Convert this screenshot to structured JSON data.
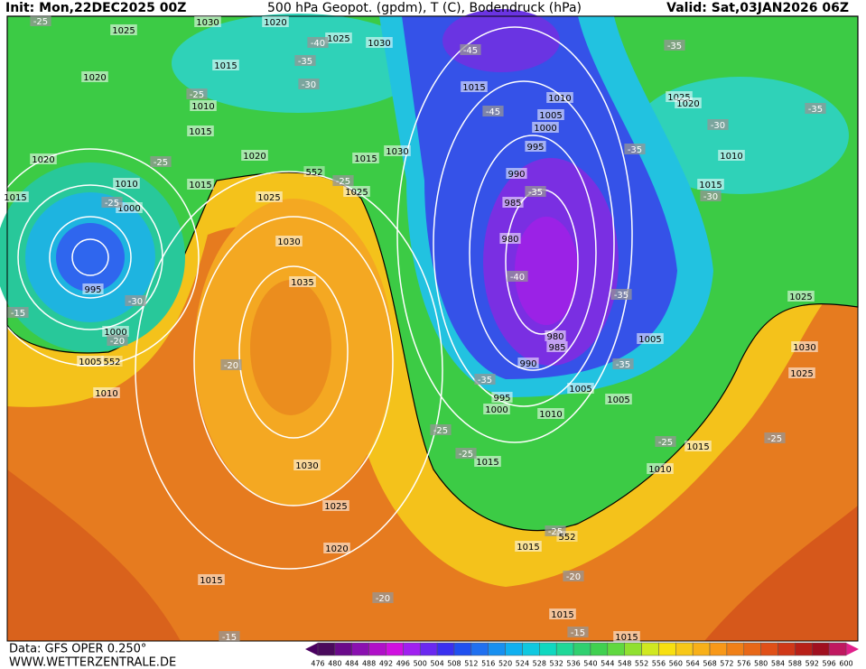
{
  "header": {
    "init": "Init: Mon,22DEC2025 00Z",
    "title": "500 hPa Geopot. (gpdm), T (C), Bodendruck (hPa)",
    "valid": "Valid: Sat,03JAN2026 06Z"
  },
  "footer": {
    "source": "Data: GFS OPER 0.250°",
    "site": "WWW.WETTERZENTRALE.DE"
  },
  "colorbar": {
    "ticks": [
      476,
      480,
      484,
      488,
      492,
      496,
      500,
      504,
      508,
      512,
      516,
      520,
      524,
      528,
      532,
      536,
      540,
      544,
      548,
      552,
      556,
      560,
      564,
      568,
      572,
      576,
      580,
      584,
      588,
      592,
      596,
      600
    ]
  },
  "map_labels": {
    "isobars": [
      1030,
      1020,
      1025,
      1025,
      1030,
      1015,
      1020,
      1010,
      1015,
      1020,
      1020,
      1015,
      1030,
      1010,
      1015,
      1025,
      1025,
      1000,
      1015,
      1030,
      1035,
      995,
      1000,
      1005,
      1010,
      1030,
      1025,
      1020,
      1015,
      1015,
      1010,
      1005,
      1000,
      995,
      990,
      985,
      980,
      980,
      985,
      990,
      995,
      1000,
      1010,
      1005,
      1005,
      1005,
      1015,
      1015,
      1015,
      1010,
      1025,
      1020,
      1010,
      1015,
      1025,
      1030,
      1025,
      1015,
      1015
    ],
    "temperatures": [
      -25,
      -40,
      -35,
      -30,
      -25,
      -25,
      -25,
      -30,
      -15,
      -20,
      -20,
      -45,
      -45,
      -35,
      -35,
      -35,
      -30,
      -30,
      -35,
      -40,
      -35,
      -35,
      -35,
      -25,
      -25,
      -25,
      -25,
      -25,
      -20,
      -20,
      -15,
      -15,
      -25
    ],
    "heights": [
      552,
      552,
      552
    ]
  }
}
